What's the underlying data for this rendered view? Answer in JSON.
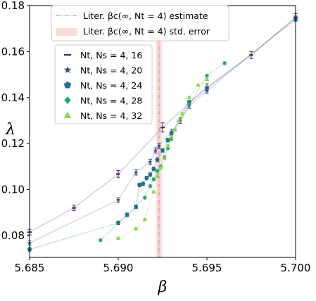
{
  "chart_data": {
    "type": "scatter",
    "xlabel": "β",
    "ylabel": "λ",
    "xlim": [
      5.685,
      5.7
    ],
    "ylim": [
      0.0705,
      0.18
    ],
    "xticks": [
      5.685,
      5.69,
      5.695,
      5.7
    ],
    "xtick_labels": [
      "5.685",
      "5.690",
      "5.695",
      "5.700"
    ],
    "yticks": [
      0.08,
      0.1,
      0.12,
      0.14,
      0.16,
      0.18
    ],
    "ytick_labels": [
      "0.08",
      "0.10",
      "0.12",
      "0.14",
      "0.16",
      "0.18"
    ],
    "grid": false,
    "literature": {
      "beta_c": 5.6923,
      "std_error": 0.00015,
      "estimate_label": "Liter. βc(∞, Nt = 4) estimate",
      "error_label": "Liter. βc(∞, Nt = 4) std. error",
      "line_color": "#e8a0a0",
      "band_color": "#fbd9d9"
    },
    "series": [
      {
        "name": "Nt, Ns = 4, 16",
        "marker": "hline",
        "color": "#4b1d5e",
        "points": [
          {
            "x": 5.685,
            "y": 0.0815,
            "err": 0.0012
          },
          {
            "x": 5.6875,
            "y": 0.092,
            "err": 0.0012
          },
          {
            "x": 5.69,
            "y": 0.1068,
            "err": 0.0015
          },
          {
            "x": 5.6925,
            "y": 0.127,
            "err": 0.002
          },
          {
            "x": 5.695,
            "y": 0.1445,
            "err": 0.0015
          },
          {
            "x": 5.6975,
            "y": 0.1585,
            "err": 0.0015
          },
          {
            "x": 5.7,
            "y": 0.175,
            "err": 0.0015
          }
        ]
      },
      {
        "name": "Nt, Ns = 4, 20",
        "marker": "star",
        "color": "#3d4a8a",
        "points": [
          {
            "x": 5.685,
            "y": 0.0768,
            "err": 0.001
          },
          {
            "x": 5.69,
            "y": 0.0955,
            "err": 0.001
          },
          {
            "x": 5.691,
            "y": 0.1075,
            "err": 0.0012
          },
          {
            "x": 5.6918,
            "y": 0.112,
            "err": 0.0012
          },
          {
            "x": 5.6921,
            "y": 0.117,
            "err": 0.0012
          },
          {
            "x": 5.6923,
            "y": 0.119,
            "err": 0.0012
          },
          {
            "x": 5.693,
            "y": 0.125,
            "err": 0.0012
          },
          {
            "x": 5.6935,
            "y": 0.13,
            "err": 0.0012
          },
          {
            "x": 5.694,
            "y": 0.1365,
            "err": 0.0012
          },
          {
            "x": 5.695,
            "y": 0.143,
            "err": 0.0012
          },
          {
            "x": 5.7,
            "y": 0.1745,
            "err": 0.0012
          }
        ]
      },
      {
        "name": "Nt, Ns = 4, 24",
        "marker": "pentagon",
        "color": "#23728a",
        "points": [
          {
            "x": 5.685,
            "y": 0.074,
            "err": 0.0008
          },
          {
            "x": 5.69,
            "y": 0.0855,
            "err": 0.0008
          },
          {
            "x": 5.6905,
            "y": 0.089,
            "err": 0.0008
          },
          {
            "x": 5.691,
            "y": 0.0925,
            "err": 0.0008
          },
          {
            "x": 5.6912,
            "y": 0.102,
            "err": 0.0008
          },
          {
            "x": 5.6914,
            "y": 0.1025,
            "err": 0.0008
          },
          {
            "x": 5.6916,
            "y": 0.105,
            "err": 0.0008
          },
          {
            "x": 5.6918,
            "y": 0.1065,
            "err": 0.0008
          },
          {
            "x": 5.692,
            "y": 0.109,
            "err": 0.0008
          },
          {
            "x": 5.6922,
            "y": 0.113,
            "err": 0.0008
          },
          {
            "x": 5.6925,
            "y": 0.117,
            "err": 0.0008
          },
          {
            "x": 5.6928,
            "y": 0.1215,
            "err": 0.0008
          },
          {
            "x": 5.693,
            "y": 0.1245,
            "err": 0.0008
          },
          {
            "x": 5.694,
            "y": 0.138,
            "err": 0.0008
          },
          {
            "x": 5.695,
            "y": 0.144,
            "err": 0.0008
          },
          {
            "x": 5.7,
            "y": 0.174,
            "err": 0.0008
          }
        ]
      },
      {
        "name": "Nt, Ns = 4, 28",
        "marker": "diamond",
        "color": "#2aa57a",
        "points": [
          {
            "x": 5.689,
            "y": 0.078,
            "err": 0.0005
          },
          {
            "x": 5.6915,
            "y": 0.0965,
            "err": 0.0005
          },
          {
            "x": 5.6918,
            "y": 0.1015,
            "err": 0.0005
          },
          {
            "x": 5.692,
            "y": 0.1045,
            "err": 0.0005
          },
          {
            "x": 5.6922,
            "y": 0.108,
            "err": 0.0005
          },
          {
            "x": 5.6924,
            "y": 0.11,
            "err": 0.0005
          },
          {
            "x": 5.6926,
            "y": 0.114,
            "err": 0.0005
          },
          {
            "x": 5.6928,
            "y": 0.118,
            "err": 0.0005
          },
          {
            "x": 5.693,
            "y": 0.122,
            "err": 0.0005
          },
          {
            "x": 5.694,
            "y": 0.137,
            "err": 0.0005
          },
          {
            "x": 5.695,
            "y": 0.1495,
            "err": 0.0005
          },
          {
            "x": 5.696,
            "y": 0.155,
            "err": 0.0005
          }
        ]
      },
      {
        "name": "Nt, Ns = 4, 32",
        "marker": "triangle",
        "color": "#8fd14f",
        "points": [
          {
            "x": 5.69,
            "y": 0.0788,
            "err": 0.0004
          },
          {
            "x": 5.691,
            "y": 0.083,
            "err": 0.0004
          },
          {
            "x": 5.6915,
            "y": 0.087,
            "err": 0.0004
          },
          {
            "x": 5.692,
            "y": 0.099,
            "err": 0.0004
          },
          {
            "x": 5.6922,
            "y": 0.106,
            "err": 0.0004
          },
          {
            "x": 5.6924,
            "y": 0.1095,
            "err": 0.0004
          },
          {
            "x": 5.6926,
            "y": 0.1135,
            "err": 0.0004
          },
          {
            "x": 5.6928,
            "y": 0.119,
            "err": 0.0004
          },
          {
            "x": 5.693,
            "y": 0.123,
            "err": 0.0004
          },
          {
            "x": 5.6932,
            "y": 0.126,
            "err": 0.0004
          },
          {
            "x": 5.6934,
            "y": 0.13,
            "err": 0.0004
          },
          {
            "x": 5.6936,
            "y": 0.133,
            "err": 0.0004
          },
          {
            "x": 5.694,
            "y": 0.14,
            "err": 0.0004
          },
          {
            "x": 5.6945,
            "y": 0.1455,
            "err": 0.0004
          },
          {
            "x": 5.695,
            "y": 0.148,
            "err": 0.0004
          }
        ]
      }
    ]
  }
}
